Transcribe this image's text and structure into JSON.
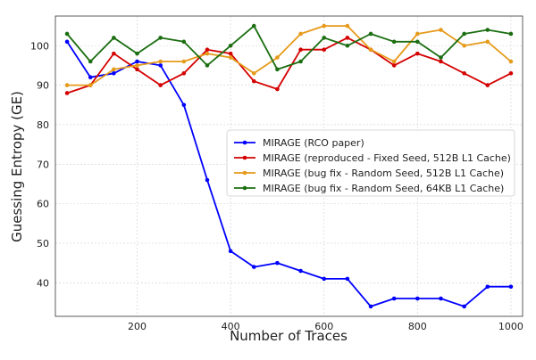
{
  "chart_data": {
    "type": "line",
    "title": "",
    "xlabel": "Number of Traces",
    "ylabel": "Guessing Entropy (GE)",
    "xlim": [
      25,
      1025
    ],
    "ylim": [
      31.5,
      107.5
    ],
    "xticks": [
      200,
      400,
      600,
      800,
      1000
    ],
    "yticks": [
      40,
      50,
      60,
      70,
      80,
      90,
      100
    ],
    "grid": true,
    "legend_position": "center-right",
    "x": [
      50,
      100,
      150,
      200,
      250,
      300,
      350,
      400,
      450,
      500,
      550,
      600,
      650,
      700,
      750,
      800,
      850,
      900,
      950,
      1000
    ],
    "series": [
      {
        "name": "MIRAGE (RCO paper)",
        "color": "#0000ff",
        "marker": "circle",
        "values": [
          101,
          92,
          93,
          96,
          95,
          85,
          66,
          48,
          44,
          45,
          43,
          41,
          41,
          34,
          36,
          36,
          36,
          34,
          39,
          39
        ]
      },
      {
        "name": "MIRAGE (reproduced - Fixed Seed, 512B L1 Cache)",
        "color": "#d40000",
        "marker": "circle",
        "values": [
          88,
          90,
          98,
          94,
          90,
          93,
          99,
          98,
          91,
          89,
          99,
          99,
          102,
          99,
          95,
          98,
          96,
          93,
          90,
          93
        ]
      },
      {
        "name": "MIRAGE (bug fix - Random Seed, 512B L1 Cache)",
        "color": "#e69a1a",
        "marker": "circle",
        "values": [
          90,
          90,
          94,
          95,
          96,
          96,
          98,
          97,
          93,
          97,
          103,
          105,
          105,
          99,
          96,
          103,
          104,
          100,
          101,
          96
        ]
      },
      {
        "name": "MIRAGE (bug fix - Random Seed, 64KB L1 Cache)",
        "color": "#1a6e10",
        "marker": "circle",
        "values": [
          103,
          96,
          102,
          98,
          102,
          101,
          95,
          100,
          105,
          94,
          96,
          102,
          100,
          103,
          101,
          101,
          97,
          103,
          104,
          103
        ]
      }
    ]
  }
}
